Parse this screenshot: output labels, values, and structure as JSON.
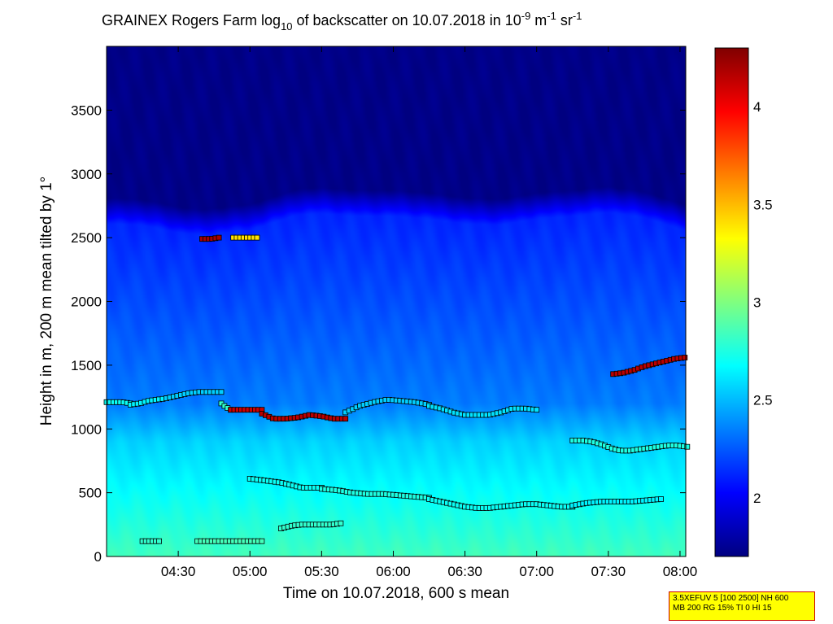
{
  "chart_data": {
    "type": "heatmap",
    "title": {
      "prefix": "GRAINEX Rogers Farm log",
      "sub": "10",
      "middle": " of backscatter on 10.07.2018 in 10",
      "sup1": "-9",
      "unit1": " m",
      "sup2": "-1",
      "unit2": " sr",
      "sup3": "-1"
    },
    "xlabel": "Time on 10.07.2018, 600 s mean",
    "ylabel": "Height in m, 200 m mean tilted by 1°",
    "x_ticks": [
      "04:30",
      "05:00",
      "05:30",
      "06:00",
      "06:30",
      "07:00",
      "07:30",
      "08:00"
    ],
    "y_ticks": [
      "0",
      "500",
      "1000",
      "1500",
      "2000",
      "2500",
      "3000",
      "3500"
    ],
    "colorbar_ticks": [
      "2",
      "2.5",
      "3",
      "3.5",
      "4"
    ],
    "xlim_hours": [
      4.0,
      8.0
    ],
    "ylim_m": [
      0,
      4000
    ],
    "clim": [
      1.7,
      4.3
    ],
    "colormap": "jet",
    "layer_tops": [
      {
        "time": "04:00",
        "h": 2690
      },
      {
        "time": "04:15",
        "h": 2680
      },
      {
        "time": "04:30",
        "h": 2620
      },
      {
        "time": "04:40",
        "h": 2600
      },
      {
        "time": "04:50",
        "h": 2620
      },
      {
        "time": "05:00",
        "h": 2640
      },
      {
        "time": "05:10",
        "h": 2700
      },
      {
        "time": "05:20",
        "h": 2760
      },
      {
        "time": "05:30",
        "h": 2770
      },
      {
        "time": "05:45",
        "h": 2750
      },
      {
        "time": "06:00",
        "h": 2750
      },
      {
        "time": "06:15",
        "h": 2730
      },
      {
        "time": "06:30",
        "h": 2690
      },
      {
        "time": "06:45",
        "h": 2680
      },
      {
        "time": "07:00",
        "h": 2730
      },
      {
        "time": "07:15",
        "h": 2750
      },
      {
        "time": "07:30",
        "h": 2780
      },
      {
        "time": "07:45",
        "h": 2740
      },
      {
        "time": "08:00",
        "h": 2650
      },
      {
        "time": "08:02",
        "h": 2640
      }
    ],
    "markers": [
      {
        "t_start": "04:00",
        "t_end": "04:10",
        "h": [
          1210,
          1210,
          1210,
          1200
        ],
        "value": 2.7
      },
      {
        "t_start": "04:10",
        "t_end": "04:25",
        "h": [
          1190,
          1200,
          1220,
          1230,
          1240
        ],
        "value": 2.65
      },
      {
        "t_start": "04:25",
        "t_end": "04:48",
        "h": [
          1240,
          1260,
          1280,
          1290,
          1290,
          1290
        ],
        "value": 2.55
      },
      {
        "t_start": "04:48",
        "t_end": "04:52",
        "h": [
          1200,
          1170,
          1150
        ],
        "value": 2.8
      },
      {
        "t_start": "04:52",
        "t_end": "05:05",
        "h": [
          1150,
          1150,
          1150,
          1150
        ],
        "value": 4.1
      },
      {
        "t_start": "05:05",
        "t_end": "05:40",
        "h": [
          1120,
          1080,
          1080,
          1090,
          1110,
          1100,
          1080,
          1080
        ],
        "value": 4.15
      },
      {
        "t_start": "05:40",
        "t_end": "06:15",
        "h": [
          1130,
          1180,
          1210,
          1230,
          1220,
          1210,
          1190
        ],
        "value": 2.55
      },
      {
        "t_start": "06:15",
        "t_end": "07:00",
        "h": [
          1180,
          1160,
          1130,
          1110,
          1110,
          1110,
          1130,
          1160,
          1160,
          1150
        ],
        "value": 2.6
      },
      {
        "t_start": "04:40",
        "t_end": "04:47",
        "h": [
          2490,
          2490,
          2500
        ],
        "value": 4.2
      },
      {
        "t_start": "04:53",
        "t_end": "05:03",
        "h": [
          2500,
          2500,
          2500,
          2500
        ],
        "value": 3.4
      },
      {
        "t_start": "07:32",
        "t_end": "08:02",
        "h": [
          1430,
          1440,
          1460,
          1490,
          1510,
          1530,
          1550,
          1560
        ],
        "value": 4.15
      },
      {
        "t_start": "07:15",
        "t_end": "08:03",
        "h": [
          910,
          910,
          900,
          880,
          850,
          830,
          830,
          840,
          850,
          860,
          870,
          870,
          860
        ],
        "value": 2.75
      },
      {
        "t_start": "05:00",
        "t_end": "05:30",
        "h": [
          610,
          600,
          590,
          580,
          560,
          540,
          540,
          540
        ],
        "value": 2.7
      },
      {
        "t_start": "05:30",
        "t_end": "06:15",
        "h": [
          530,
          520,
          500,
          490,
          490,
          480,
          470,
          460
        ],
        "value": 2.75
      },
      {
        "t_start": "06:15",
        "t_end": "07:15",
        "h": [
          450,
          430,
          410,
          390,
          380,
          380,
          390,
          400,
          410,
          410,
          400,
          390,
          390
        ],
        "value": 2.7
      },
      {
        "t_start": "07:15",
        "t_end": "07:52",
        "h": [
          400,
          420,
          430,
          430,
          430,
          440,
          450
        ],
        "value": 2.65
      },
      {
        "t_start": "05:13",
        "t_end": "05:38",
        "h": [
          220,
          240,
          250,
          250,
          250,
          250,
          260
        ],
        "value": 2.8
      },
      {
        "t_start": "04:15",
        "t_end": "04:22",
        "h": [
          120,
          120,
          120
        ],
        "value": 2.8
      },
      {
        "t_start": "04:38",
        "t_end": "05:05",
        "h": [
          120,
          120,
          120,
          120,
          120,
          120,
          120
        ],
        "value": 2.85
      }
    ]
  },
  "params_box": {
    "line1": "3.5XEFUV 5 [100 2500] NH 600",
    "line2": "MB 200 RG 15% TI 0 HI 15"
  }
}
